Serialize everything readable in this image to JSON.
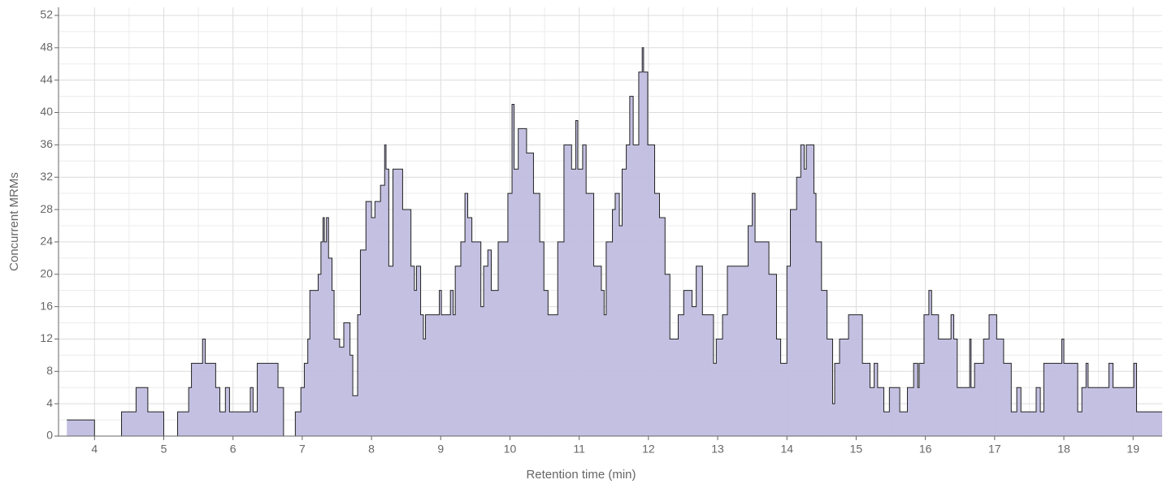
{
  "chart_data": {
    "type": "step",
    "x_label": "Retention time (min)",
    "y_label": "Concurrent MRMs",
    "xlim": [
      3.48,
      19.42
    ],
    "ylim": [
      0,
      53
    ],
    "xticks": [
      4,
      5,
      6,
      7,
      8,
      9,
      10,
      11,
      12,
      13,
      14,
      15,
      16,
      17,
      18,
      19
    ],
    "yticks": [
      0,
      4,
      8,
      12,
      16,
      20,
      24,
      28,
      32,
      36,
      40,
      44,
      48,
      52
    ],
    "grid": true,
    "series": [
      {
        "name": "Concurrent MRMs",
        "color": "#c0bde0",
        "line_color": "#222222",
        "x": [
          3.6,
          4.0,
          4.39,
          4.6,
          4.77,
          5.0,
          5.2,
          5.36,
          5.4,
          5.56,
          5.6,
          5.75,
          5.81,
          5.89,
          5.95,
          6.25,
          6.29,
          6.35,
          6.65,
          6.73,
          6.9,
          6.98,
          7.03,
          7.08,
          7.11,
          7.23,
          7.27,
          7.3,
          7.32,
          7.35,
          7.38,
          7.43,
          7.46,
          7.54,
          7.6,
          7.69,
          7.73,
          7.8,
          7.84,
          7.92,
          8.0,
          8.05,
          8.13,
          8.19,
          8.21,
          8.25,
          8.31,
          8.45,
          8.57,
          8.62,
          8.65,
          8.71,
          8.75,
          8.78,
          8.98,
          9.01,
          9.14,
          9.18,
          9.21,
          9.29,
          9.35,
          9.39,
          9.45,
          9.58,
          9.62,
          9.68,
          9.73,
          9.83,
          9.97,
          10.03,
          10.06,
          10.12,
          10.24,
          10.34,
          10.43,
          10.49,
          10.55,
          10.69,
          10.78,
          10.89,
          10.95,
          10.98,
          11.05,
          11.1,
          11.21,
          11.32,
          11.36,
          11.39,
          11.48,
          11.52,
          11.58,
          11.62,
          11.68,
          11.73,
          11.78,
          11.86,
          11.91,
          11.93,
          11.99,
          12.09,
          12.16,
          12.24,
          12.31,
          12.43,
          12.51,
          12.63,
          12.69,
          12.78,
          12.94,
          12.98,
          13.07,
          13.14,
          13.44,
          13.5,
          13.54,
          13.74,
          13.85,
          13.91,
          14.0,
          14.05,
          14.14,
          14.2,
          14.25,
          14.28,
          14.39,
          14.42,
          14.5,
          14.58,
          14.66,
          14.69,
          14.76,
          14.89,
          15.09,
          15.2,
          15.26,
          15.31,
          15.4,
          15.48,
          15.63,
          15.74,
          15.83,
          15.89,
          15.91,
          15.98,
          16.05,
          16.09,
          16.19,
          16.37,
          16.41,
          16.46,
          16.64,
          16.66,
          16.71,
          16.84,
          16.92,
          17.03,
          17.13,
          17.24,
          17.32,
          17.38,
          17.6,
          17.66,
          17.71,
          17.97,
          18.0,
          18.2,
          18.26,
          18.32,
          18.35,
          18.65,
          18.71,
          19.01,
          19.05,
          19.42
        ],
        "values": [
          2,
          0,
          3,
          6,
          3,
          0,
          3,
          6,
          9,
          12,
          9,
          6,
          3,
          6,
          3,
          6,
          3,
          9,
          6,
          0,
          3,
          6,
          9,
          12,
          18,
          20,
          24,
          27,
          24,
          27,
          22,
          18,
          12,
          11,
          14,
          10,
          5,
          15,
          23,
          29,
          27,
          29,
          31,
          36,
          33,
          21,
          33,
          28,
          21,
          18,
          21,
          15,
          12,
          15,
          18,
          15,
          18,
          15,
          21,
          24,
          30,
          27,
          24,
          16,
          21,
          23,
          18,
          24,
          30,
          41,
          33,
          38,
          35,
          30,
          24,
          18,
          15,
          24,
          36,
          33,
          39,
          33,
          36,
          30,
          21,
          18,
          15,
          24,
          28,
          30,
          26,
          33,
          36,
          42,
          36,
          45,
          48,
          45,
          36,
          30,
          27,
          20,
          12,
          15,
          18,
          16,
          21,
          15,
          9,
          12,
          15,
          21,
          26,
          30,
          24,
          20,
          12,
          9,
          21,
          28,
          32,
          36,
          33,
          36,
          30,
          24,
          18,
          12,
          4,
          9,
          12,
          15,
          9,
          6,
          9,
          6,
          3,
          6,
          3,
          6,
          9,
          6,
          9,
          15,
          18,
          15,
          12,
          15,
          12,
          6,
          12,
          6,
          9,
          12,
          15,
          12,
          9,
          3,
          6,
          3,
          6,
          3,
          9,
          12,
          9,
          3,
          6,
          9,
          6,
          9,
          6,
          9,
          3,
          3
        ]
      }
    ]
  }
}
